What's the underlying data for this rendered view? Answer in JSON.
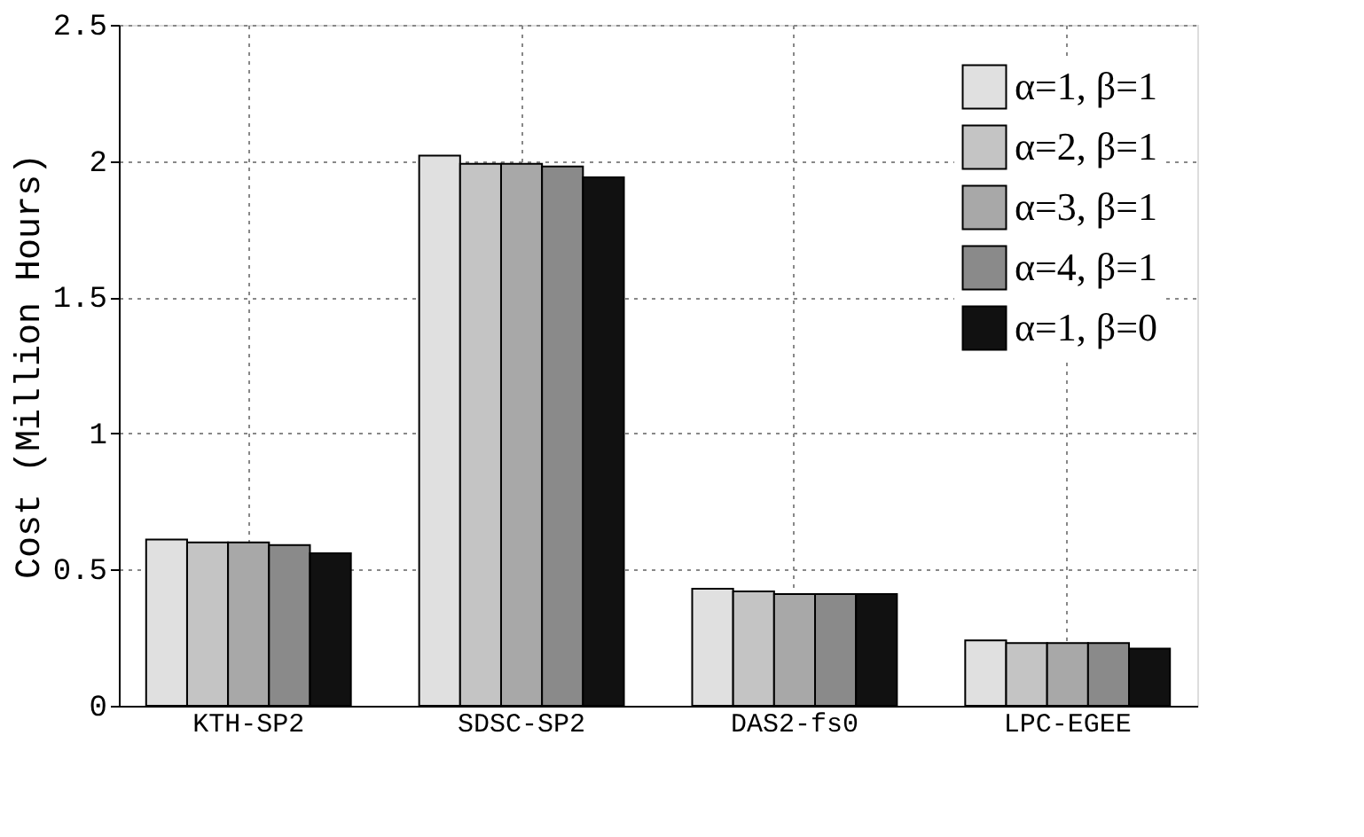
{
  "chart_data": {
    "type": "bar",
    "ylabel": "Cost (Million Hours)",
    "categories": [
      "KTH-SP2",
      "SDSC-SP2",
      "DAS2-fs0",
      "LPC-EGEE"
    ],
    "series": [
      {
        "name": "α=1, β=1",
        "color": "#e0e0e0",
        "values": [
          0.61,
          2.02,
          0.43,
          0.24
        ]
      },
      {
        "name": "α=2, β=1",
        "color": "#c4c4c4",
        "values": [
          0.6,
          1.99,
          0.42,
          0.23
        ]
      },
      {
        "name": "α=3, β=1",
        "color": "#a8a8a8",
        "values": [
          0.6,
          1.99,
          0.41,
          0.23
        ]
      },
      {
        "name": "α=4, β=1",
        "color": "#8a8a8a",
        "values": [
          0.59,
          1.98,
          0.41,
          0.23
        ]
      },
      {
        "name": "α=1, β=0",
        "color": "#111111",
        "values": [
          0.56,
          1.94,
          0.41,
          0.21
        ]
      }
    ],
    "ylim": [
      0,
      2.5
    ],
    "yticks": [
      0,
      0.5,
      1,
      1.5,
      2,
      2.5
    ],
    "grid": true,
    "legend": "top right"
  }
}
